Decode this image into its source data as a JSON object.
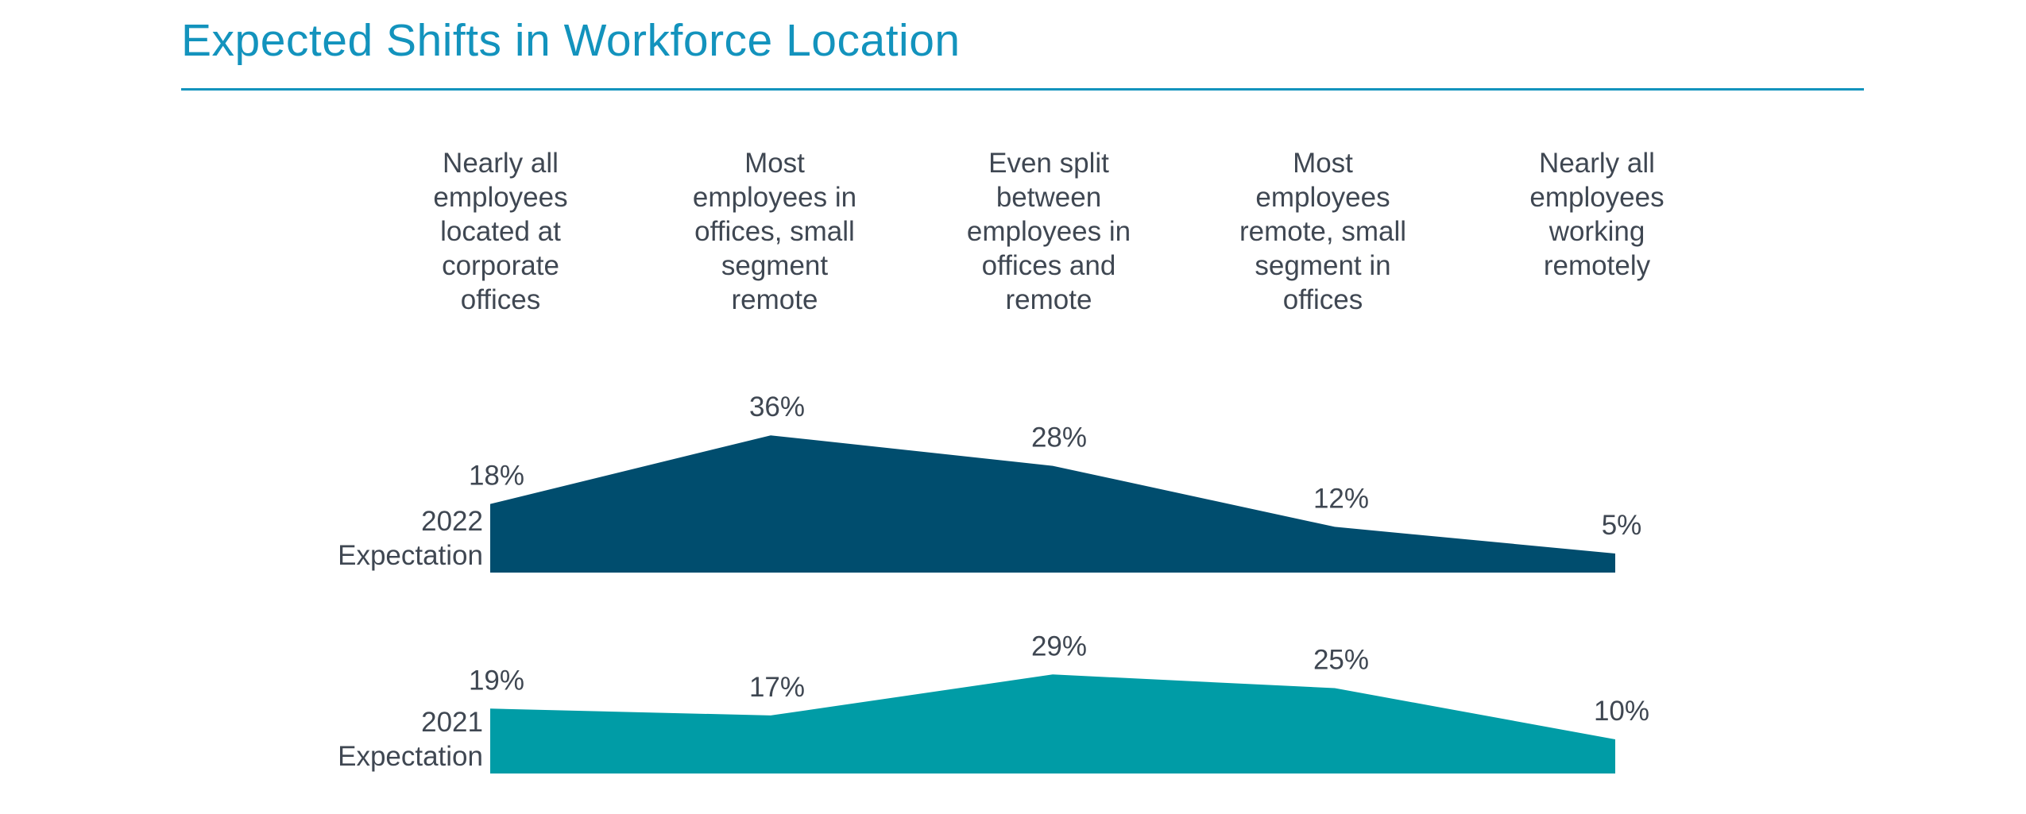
{
  "chart_data": {
    "type": "area",
    "title": "Expected Shifts in Workforce Location",
    "categories": [
      "Nearly all employees located at corporate offices",
      "Most employees in offices, small segment remote",
      "Even split between employees in offices and remote",
      "Most employees remote, small segment in offices",
      "Nearly all employees working remotely"
    ],
    "category_lines": [
      [
        "Nearly all",
        "employees",
        "located at",
        "corporate",
        "offices"
      ],
      [
        "Most",
        "employees in",
        "offices, small",
        "segment",
        "remote"
      ],
      [
        "Even split",
        "between",
        "employees in",
        "offices and",
        "remote"
      ],
      [
        "Most",
        "employees",
        "remote, small",
        "segment in",
        "offices"
      ],
      [
        "Nearly all",
        "employees",
        "working",
        "remotely"
      ]
    ],
    "series": [
      {
        "name": "2022 Expectation",
        "name_lines": [
          "2022",
          "Expectation"
        ],
        "values": [
          18,
          36,
          28,
          12,
          5
        ],
        "labels": [
          "18%",
          "36%",
          "28%",
          "12%",
          "5%"
        ],
        "color": "#004d6e"
      },
      {
        "name": "2021 Expectation",
        "name_lines": [
          "2021",
          "Expectation"
        ],
        "values": [
          19,
          17,
          29,
          25,
          10
        ],
        "labels": [
          "19%",
          "17%",
          "29%",
          "25%",
          "10%"
        ],
        "color": "#009ca6"
      }
    ],
    "unit": "%",
    "ylim": [
      0,
      36
    ],
    "grid": false,
    "legend": "none"
  },
  "colors": {
    "title": "#1393bd",
    "text": "#3f4752"
  }
}
